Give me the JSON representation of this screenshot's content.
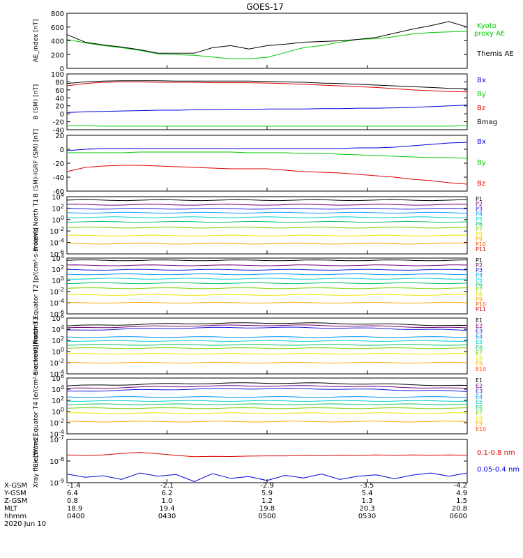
{
  "title": "GOES-17",
  "colors": {
    "black": "#000000",
    "green": "#00c800",
    "blue": "#0000dd",
    "red": "#dd0000",
    "bands": [
      "#000000",
      "#7a007a",
      "#1a1adc",
      "#0099ff",
      "#00d0d0",
      "#00c060",
      "#7ad000",
      "#e8e800",
      "#ffa500",
      "#ff5000",
      "#cc0000"
    ]
  },
  "chart_data": [
    {
      "type": "line",
      "ylabel": "AE_index [nT]",
      "ylim": [
        0,
        800
      ],
      "yticks": [
        "800",
        "600",
        "400",
        "200",
        "0"
      ],
      "series": [
        {
          "name": "Kyoto proxy AE",
          "color": "green",
          "values": [
            420,
            370,
            330,
            300,
            260,
            210,
            200,
            190,
            165,
            140,
            140,
            160,
            230,
            300,
            330,
            380,
            420,
            430,
            460,
            500,
            520,
            530,
            540
          ]
        },
        {
          "name": "Themis AE",
          "color": "black",
          "values": [
            490,
            380,
            340,
            310,
            270,
            220,
            220,
            220,
            300,
            330,
            280,
            330,
            350,
            380,
            390,
            400,
            420,
            450,
            510,
            570,
            620,
            680,
            600
          ]
        }
      ],
      "legend": [
        "Kyoto",
        "proxy AE",
        "Themis AE"
      ]
    },
    {
      "type": "line",
      "ylabel": "B (SM) [nT]",
      "ylim": [
        -40,
        100
      ],
      "yticks": [
        "100",
        "80",
        "60",
        "40",
        "20",
        "0",
        "-20",
        "-40"
      ],
      "series": [
        {
          "name": "Bx",
          "color": "blue",
          "values": [
            3,
            5,
            6,
            7,
            8,
            9,
            9,
            10,
            10,
            11,
            11,
            12,
            12,
            12,
            13,
            13,
            14,
            14,
            15,
            16,
            18,
            20,
            22
          ]
        },
        {
          "name": "By",
          "color": "green",
          "values": [
            -30,
            -30,
            -31,
            -31,
            -31,
            -31,
            -31,
            -31,
            -31,
            -31,
            -31,
            -31,
            -31,
            -31,
            -31,
            -31,
            -31,
            -31,
            -31,
            -31,
            -31,
            -31,
            -30
          ]
        },
        {
          "name": "Bz",
          "color": "red",
          "values": [
            70,
            76,
            79,
            80,
            80,
            79,
            79,
            79,
            78,
            78,
            78,
            77,
            76,
            74,
            72,
            70,
            68,
            66,
            63,
            60,
            58,
            56,
            55
          ]
        },
        {
          "name": "Bmag",
          "color": "black",
          "values": [
            76,
            80,
            82,
            83,
            83,
            83,
            82,
            82,
            82,
            82,
            82,
            81,
            80,
            79,
            77,
            76,
            74,
            72,
            70,
            68,
            66,
            64,
            63
          ]
        }
      ]
    },
    {
      "type": "line",
      "ylabel": "B (SM)-IGRF (SM) [nT]",
      "ylim": [
        -60,
        20
      ],
      "yticks": [
        "20",
        "0",
        "-20",
        "-40",
        "-60"
      ],
      "series": [
        {
          "name": "Bx",
          "color": "blue",
          "values": [
            -2,
            0,
            1,
            1,
            1,
            1,
            1,
            1,
            1,
            1,
            1,
            1,
            1,
            1,
            1,
            1,
            2,
            2,
            3,
            5,
            7,
            9,
            10
          ]
        },
        {
          "name": "By",
          "color": "green",
          "values": [
            -5,
            -5,
            -5,
            -5,
            -4,
            -4,
            -4,
            -4,
            -4,
            -4,
            -5,
            -5,
            -5,
            -6,
            -6,
            -7,
            -8,
            -9,
            -10,
            -11,
            -12,
            -12,
            -13
          ]
        },
        {
          "name": "Bz",
          "color": "red",
          "values": [
            -32,
            -26,
            -24,
            -23,
            -23,
            -24,
            -25,
            -26,
            -27,
            -28,
            -28,
            -28,
            -30,
            -32,
            -33,
            -34,
            -36,
            -38,
            -40,
            -43,
            -45,
            -48,
            -50
          ]
        }
      ]
    },
    {
      "type": "line",
      "ylabel": "Protons North T1",
      "log": true,
      "ylim": [
        -6,
        4
      ],
      "yticks": [
        "10^4",
        "10^2",
        "10^0",
        "10^-2",
        "10^-4",
        "10^-6"
      ],
      "series": [
        {
          "name": "P1",
          "level": 3.4
        },
        {
          "name": "P2",
          "level": 2.6
        },
        {
          "name": "P3",
          "level": 1.9
        },
        {
          "name": "P4",
          "level": 1.2
        },
        {
          "name": "P5",
          "level": 0.4
        },
        {
          "name": "P6",
          "level": -0.4
        },
        {
          "name": "P7",
          "level": -1.4
        },
        {
          "name": "P8",
          "level": -2.8
        },
        {
          "name": "P9",
          "level": -4.2
        },
        {
          "name": "P10",
          "level": null
        },
        {
          "name": "P11",
          "level": null
        }
      ]
    },
    {
      "type": "line",
      "ylabel": "Protons Equator T2 [p/(cm²-s-sr-keV)]",
      "log": true,
      "ylim": [
        -6,
        4
      ],
      "yticks": [
        "10^4",
        "10^2",
        "10^0",
        "10^-2",
        "10^-4",
        "10^-6"
      ],
      "series": [
        {
          "name": "P1",
          "level": 3.6
        },
        {
          "name": "P2",
          "level": 2.7
        },
        {
          "name": "P3",
          "level": 1.9
        },
        {
          "name": "P4",
          "level": 1.1
        },
        {
          "name": "P5",
          "level": 0.3
        },
        {
          "name": "P6",
          "level": -0.5
        },
        {
          "name": "P7",
          "level": -1.4
        },
        {
          "name": "P8",
          "level": -2.6
        },
        {
          "name": "P9",
          "level": -4.0
        },
        {
          "name": "P10",
          "level": null
        },
        {
          "name": "P11",
          "level": null
        }
      ]
    },
    {
      "type": "line",
      "ylabel": "Electrons North T3",
      "log": true,
      "ylim": [
        -4,
        6
      ],
      "yticks": [
        "10^6",
        "10^4",
        "10^2",
        "10^0",
        "10^-2",
        "10^-4"
      ],
      "series": [
        {
          "name": "E1",
          "level": 4.6
        },
        {
          "name": "E2",
          "level": 4.2
        },
        {
          "name": "E3",
          "level": 3.8
        },
        {
          "name": "E4",
          "level": 2.6
        },
        {
          "name": "E5",
          "level": 1.9
        },
        {
          "name": "E6",
          "level": 1.2
        },
        {
          "name": "E7",
          "level": 0.6
        },
        {
          "name": "E8",
          "level": -0.4
        },
        {
          "name": "E9",
          "level": -2.0
        },
        {
          "name": "E10",
          "level": null
        }
      ]
    },
    {
      "type": "line",
      "ylabel": "Electrons Equator T4 [e/(cm²-s-sr-keV)]",
      "log": true,
      "ylim": [
        -4,
        6
      ],
      "yticks": [
        "10^6",
        "10^4",
        "10^2",
        "10^0",
        "10^-2",
        "10^-4"
      ],
      "series": [
        {
          "name": "E1",
          "level": 4.6
        },
        {
          "name": "E2",
          "level": 4.1
        },
        {
          "name": "E3",
          "level": 3.6
        },
        {
          "name": "E4",
          "level": 2.6
        },
        {
          "name": "E5",
          "level": 1.9
        },
        {
          "name": "E6",
          "level": 1.3
        },
        {
          "name": "E7",
          "level": 0.6
        },
        {
          "name": "E8",
          "level": -0.3
        },
        {
          "name": "E9",
          "level": -1.8
        },
        {
          "name": "E10",
          "level": null
        }
      ]
    },
    {
      "type": "line",
      "ylabel": "Xray flux [W/m2]",
      "log": true,
      "ylim": [
        -9,
        -7
      ],
      "yticks": [
        "10^-7",
        "10^-8",
        "10^-9"
      ],
      "series": [
        {
          "name": "0.1-0.8 nm",
          "color": "red",
          "values": [
            -7.72,
            -7.74,
            -7.72,
            -7.65,
            -7.6,
            -7.66,
            -7.74,
            -7.8,
            -7.78,
            -7.79,
            -7.77,
            -7.76,
            -7.76,
            -7.74,
            -7.75,
            -7.73,
            -7.74,
            -7.72,
            -7.73,
            -7.72,
            -7.73,
            -7.72,
            -7.73
          ]
        },
        {
          "name": "0.05-0.4 nm",
          "color": "blue",
          "values": [
            -8.6,
            -8.75,
            -8.68,
            -8.85,
            -8.55,
            -8.7,
            -8.62,
            -8.95,
            -8.58,
            -8.8,
            -8.72,
            -8.9,
            -8.66,
            -8.78,
            -8.6,
            -8.85,
            -8.7,
            -8.64,
            -8.82,
            -8.65,
            -8.55,
            -8.7,
            -8.55
          ]
        }
      ]
    }
  ],
  "xaxis": {
    "tick_columns": [
      {
        "xgsm": "-1.4",
        "ygsm": "6.4",
        "zgsm": "0.8",
        "mlt": "18.9",
        "hhmm": "0400"
      },
      {
        "xgsm": "-2.1",
        "ygsm": "6.2",
        "zgsm": "1.0",
        "mlt": "19.4",
        "hhmm": "0430"
      },
      {
        "xgsm": "-2.9",
        "ygsm": "5.9",
        "zgsm": "1.2",
        "mlt": "19.8",
        "hhmm": "0500"
      },
      {
        "xgsm": "-3.5",
        "ygsm": "5.4",
        "zgsm": "1.3",
        "mlt": "20.3",
        "hhmm": "0530"
      },
      {
        "xgsm": "-4.2",
        "ygsm": "4.9",
        "zgsm": "1.5",
        "mlt": "20.8",
        "hhmm": "0600"
      }
    ],
    "row_labels": [
      "X-GSM",
      "Y-GSM",
      "Z-GSM",
      "MLT",
      "hhmm"
    ],
    "date": "2020 Jun 10"
  }
}
